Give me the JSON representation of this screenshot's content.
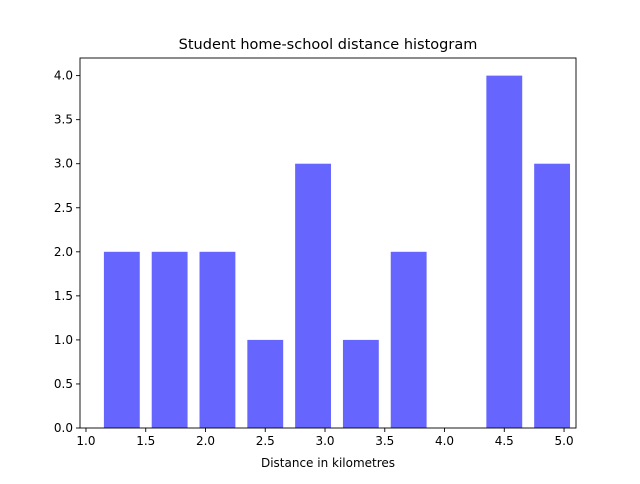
{
  "chart_data": {
    "type": "bar",
    "title": "Student home-school distance histogram",
    "xlabel": "Distance in kilometres",
    "ylabel": "",
    "x": [
      1.3,
      1.7,
      2.1,
      2.5,
      2.9,
      3.3,
      3.7,
      4.1,
      4.5,
      4.9
    ],
    "bar_width": 0.3,
    "values": [
      2,
      2,
      2,
      1,
      3,
      1,
      2,
      0,
      4,
      3
    ],
    "xlim": [
      0.95,
      5.1
    ],
    "ylim": [
      0,
      4.2
    ],
    "xticks": [
      "1.0",
      "1.5",
      "2.0",
      "2.5",
      "3.0",
      "3.5",
      "4.0",
      "4.5",
      "5.0"
    ],
    "yticks": [
      "0.0",
      "0.5",
      "1.0",
      "1.5",
      "2.0",
      "2.5",
      "3.0",
      "3.5",
      "4.0"
    ],
    "bar_color": "#6666ff",
    "grid": false,
    "legend": "none"
  }
}
